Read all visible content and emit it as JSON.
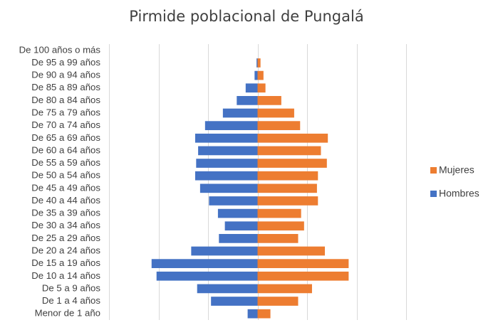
{
  "chart_data": {
    "type": "bar",
    "orientation": "horizontal-diverging",
    "title": "Pirmide poblacional de Pungalá",
    "categories": [
      "De 100 años o más",
      "De 95 a 99 años",
      "De 90 a 94 años",
      "De 85 a 89 años",
      "De 80 a 84 años",
      "De 75 a 79 años",
      "De 70 a 74 años",
      "De 65 a 69 años",
      "De 60 a 64 años",
      "De 55 a 59 años",
      "De 50 a 54 años",
      "De 45 a 49 años",
      "De 40 a 44 años",
      "De 35 a 39 años",
      "De 30 a 34 años",
      "De 25 a 29 años",
      "De 20 a 24 años",
      "De 15 a 19 años",
      "De 10 a 14 años",
      "De 5 a 9 años",
      "De 1 a 4 años",
      "Menor de 1 año"
    ],
    "series": [
      {
        "name": "Mujeres",
        "color": "#ed7d31",
        "values": [
          0,
          3,
          6,
          8,
          24,
          37,
          43,
          71,
          64,
          70,
          61,
          60,
          61,
          44,
          47,
          41,
          68,
          92,
          92,
          55,
          41,
          13
        ]
      },
      {
        "name": "Hombres",
        "color": "#4472c4",
        "values": [
          0,
          -1,
          -3,
          -12,
          -21,
          -35,
          -53,
          -63,
          -60,
          -62,
          -63,
          -58,
          -49,
          -40,
          -33,
          -39,
          -67,
          -107,
          -102,
          -61,
          -47,
          -10
        ]
      }
    ],
    "xlim": [
      -150,
      150
    ],
    "x_gridlines": [
      -150,
      -100,
      -50,
      0,
      50,
      100,
      150
    ],
    "grid": true,
    "legend_position": "right"
  }
}
